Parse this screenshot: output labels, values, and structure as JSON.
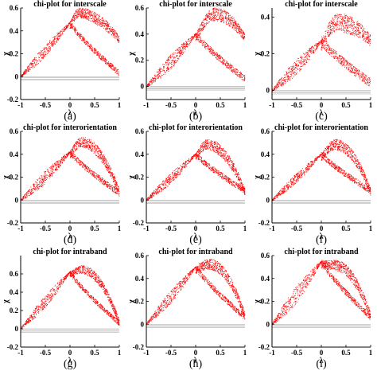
{
  "figure": {
    "panels": [
      {
        "id": "a",
        "caption": "(a)",
        "title": "chi-plot for interscale",
        "yticks": [
          "0.6",
          "0.4",
          "0.2",
          "0",
          "-0.2"
        ],
        "peak": [
          0.2,
          0.6
        ],
        "lower_end": 0.03,
        "left_upper": 0.07
      },
      {
        "id": "b",
        "caption": "(b)",
        "title": "chi-plot for interscale",
        "yticks": [
          "0.6",
          "0.4",
          "0.2",
          "0"
        ],
        "peak": [
          0.4,
          0.6
        ],
        "lower_end": 0.06,
        "left_upper": 0.08
      },
      {
        "id": "c",
        "caption": "(c)",
        "title": "chi-plot for interscale",
        "yticks": [
          "0.4",
          "0.2",
          "0"
        ],
        "peak": [
          0.35,
          0.42
        ],
        "lower_end": 0.04,
        "left_upper": 0.05
      },
      {
        "id": "d",
        "caption": "(d)",
        "title": "chi-plot for interorientation",
        "yticks": [
          "0.6",
          "0.4",
          "0.2",
          "0",
          "-0.2"
        ],
        "peak": [
          0.25,
          0.55
        ],
        "lower_end": 0.06,
        "left_upper": 0.08
      },
      {
        "id": "e",
        "caption": "(e)",
        "title": "chi-plot for interorientation",
        "yticks": [
          "0.6",
          "0.4",
          "0.2",
          "0",
          "-0.2"
        ],
        "peak": [
          0.25,
          0.53
        ],
        "lower_end": 0.08,
        "left_upper": 0.06
      },
      {
        "id": "f",
        "caption": "(f)",
        "title": "chi-plot for interorientation",
        "yticks": [
          "0.6",
          "0.4",
          "0.2",
          "0",
          "-0.2"
        ],
        "peak": [
          0.3,
          0.53
        ],
        "lower_end": 0.08,
        "left_upper": 0.05
      },
      {
        "id": "g",
        "caption": "(g)",
        "title": "chi-plot for intraband",
        "yticks": [
          "0.6",
          "0.4",
          "0.2",
          "0",
          "-0.2"
        ],
        "peak": [
          0.25,
          0.69
        ],
        "lower_end": 0.06,
        "left_upper": 0.1
      },
      {
        "id": "h",
        "caption": "(h)",
        "title": "chi-plot for intraband",
        "yticks": [
          "0.6",
          "0.4",
          "0.2",
          "0",
          "-0.2"
        ],
        "peak": [
          0.3,
          0.57
        ],
        "lower_end": 0.06,
        "left_upper": 0.08
      },
      {
        "id": "i",
        "caption": "(i)",
        "title": "chi-plot for intraband",
        "yticks": [
          "0.6",
          "0.4",
          "0.2",
          "0",
          "-0.2"
        ],
        "peak": [
          0.3,
          0.56
        ],
        "lower_end": 0.06,
        "left_upper": 0.12
      }
    ],
    "xticks": [
      "-1",
      "-0.5",
      "0",
      "0.5",
      "1"
    ],
    "xlabel": "λ",
    "ylabel": "χ",
    "point_color": "#ff0000",
    "axis_color": "#000000",
    "baseline_color": "#a0a0a0"
  },
  "chart_data": [
    {
      "type": "scatter",
      "title": "chi-plot for interscale",
      "xlabel": "λ",
      "ylabel": "χ",
      "xlim": [
        -1,
        1
      ],
      "ylim": [
        -0.2,
        0.6
      ],
      "grid": false,
      "legend": "none",
      "shape_points": [
        [
          -1,
          0.0
        ],
        [
          0,
          0.47
        ],
        [
          0.2,
          0.6
        ],
        [
          1,
          0.35
        ]
      ]
    },
    {
      "type": "scatter",
      "title": "chi-plot for interscale",
      "xlabel": "λ",
      "ylabel": "χ",
      "xlim": [
        -1,
        1
      ],
      "ylim": [
        -0.1,
        0.6
      ],
      "grid": false,
      "legend": "none",
      "shape_points": [
        [
          -1,
          0.0
        ],
        [
          0,
          0.4
        ],
        [
          0.4,
          0.6
        ],
        [
          1,
          0.4
        ]
      ]
    },
    {
      "type": "scatter",
      "title": "chi-plot for interscale",
      "xlabel": "λ",
      "ylabel": "χ",
      "xlim": [
        -1,
        1
      ],
      "ylim": [
        -0.05,
        0.45
      ],
      "grid": false,
      "legend": "none",
      "shape_points": [
        [
          -1,
          0.0
        ],
        [
          0,
          0.27
        ],
        [
          0.35,
          0.42
        ],
        [
          1,
          0.3
        ]
      ]
    },
    {
      "type": "scatter",
      "title": "chi-plot for interorientation",
      "xlabel": "λ",
      "ylabel": "χ",
      "xlim": [
        -1,
        1
      ],
      "ylim": [
        -0.2,
        0.6
      ],
      "grid": false,
      "legend": "none",
      "shape_points": [
        [
          -1,
          0.0
        ],
        [
          0,
          0.42
        ],
        [
          0.25,
          0.55
        ],
        [
          1,
          0.1
        ]
      ]
    },
    {
      "type": "scatter",
      "title": "chi-plot for interorientation",
      "xlabel": "λ",
      "ylabel": "χ",
      "xlim": [
        -1,
        1
      ],
      "ylim": [
        -0.2,
        0.6
      ],
      "grid": false,
      "legend": "none",
      "shape_points": [
        [
          -1,
          0.0
        ],
        [
          0,
          0.4
        ],
        [
          0.25,
          0.53
        ],
        [
          1,
          0.1
        ]
      ]
    },
    {
      "type": "scatter",
      "title": "chi-plot for interorientation",
      "xlabel": "λ",
      "ylabel": "χ",
      "xlim": [
        -1,
        1
      ],
      "ylim": [
        -0.2,
        0.6
      ],
      "grid": false,
      "legend": "none",
      "shape_points": [
        [
          -1,
          0.0
        ],
        [
          0,
          0.4
        ],
        [
          0.3,
          0.53
        ],
        [
          1,
          0.1
        ]
      ]
    },
    {
      "type": "scatter",
      "title": "chi-plot for intraband",
      "xlabel": "λ",
      "ylabel": "χ",
      "xlim": [
        -1,
        1
      ],
      "ylim": [
        -0.2,
        0.8
      ],
      "grid": false,
      "legend": "none",
      "shape_points": [
        [
          -1,
          0.0
        ],
        [
          0,
          0.62
        ],
        [
          0.25,
          0.69
        ],
        [
          1,
          0.1
        ]
      ]
    },
    {
      "type": "scatter",
      "title": "chi-plot for intraband",
      "xlabel": "λ",
      "ylabel": "χ",
      "xlim": [
        -1,
        1
      ],
      "ylim": [
        -0.2,
        0.6
      ],
      "grid": false,
      "legend": "none",
      "shape_points": [
        [
          -1,
          0.0
        ],
        [
          0,
          0.5
        ],
        [
          0.3,
          0.57
        ],
        [
          1,
          0.1
        ]
      ]
    },
    {
      "type": "scatter",
      "title": "chi-plot for intraband",
      "xlabel": "λ",
      "ylabel": "χ",
      "xlim": [
        -1,
        1
      ],
      "ylim": [
        -0.2,
        0.6
      ],
      "grid": false,
      "legend": "none",
      "shape_points": [
        [
          -1,
          0.0
        ],
        [
          0,
          0.55
        ],
        [
          0.3,
          0.56
        ],
        [
          1,
          0.1
        ]
      ]
    }
  ]
}
